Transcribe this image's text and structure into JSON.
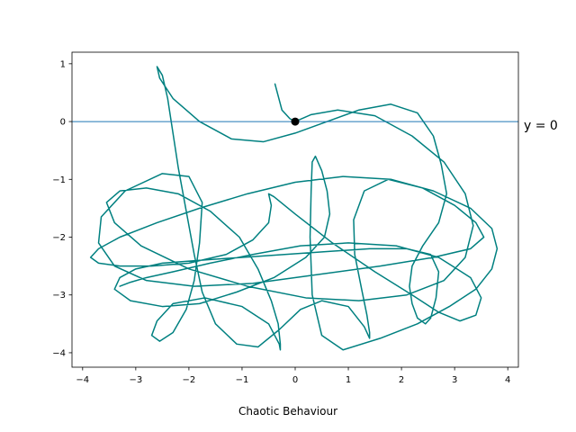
{
  "chart_data": {
    "type": "line",
    "title": "",
    "xlabel": "Chaotic Behaviour",
    "ylabel": "",
    "xlim": [
      -4.2,
      4.2
    ],
    "ylim": [
      -4.25,
      1.2
    ],
    "xticks": [
      -4,
      -3,
      -2,
      -1,
      0,
      1,
      2,
      3,
      4
    ],
    "xtick_labels": [
      "−4",
      "−3",
      "−2",
      "−1",
      "0",
      "1",
      "2",
      "3",
      "4"
    ],
    "yticks": [
      1,
      0,
      -1,
      -2,
      -3,
      -4
    ],
    "ytick_labels": [
      "1",
      "0",
      "−1",
      "−2",
      "−3",
      "−4"
    ],
    "grid": false,
    "series": [
      {
        "color": "#008080",
        "x": [
          -0.38,
          -0.25,
          -0.1,
          0,
          0.3,
          0.8,
          1.5,
          2.2,
          2.8,
          3.2,
          3.35,
          3.2,
          2.8,
          2.1,
          1.2,
          0.2,
          -0.9,
          -2,
          -2.9,
          -3.4,
          -3.55,
          -3.3,
          -2.8,
          -2.2,
          -1.6,
          -1.05,
          -0.7,
          -0.45,
          -0.32,
          -0.28,
          -0.28,
          -0.3,
          -0.5,
          -1,
          -1.7,
          -2.3,
          -2.6,
          -2.7,
          -2.55,
          -2.3,
          -2.05,
          -1.9,
          -1.8,
          -1.75,
          -2,
          -2.5,
          -3.2,
          -3.65,
          -3.7,
          -3.4,
          -2.8,
          -1.9,
          -0.8,
          0.4,
          1.6,
          2.6,
          3.3,
          3.55,
          3.4,
          3,
          2.4,
          1.75,
          1.3,
          1.1,
          1.12,
          1.25,
          1.35,
          1.4,
          1.4,
          1.3,
          1,
          0.5,
          0.1,
          -0.3,
          -0.7,
          -1.1,
          -1.5,
          -1.75,
          -1.9,
          -2.05,
          -2.2,
          -2.3,
          -2.4,
          -2.5,
          -2.6,
          -2.55,
          -2.3,
          -1.8,
          -1.2,
          -0.6,
          0,
          0.6,
          1.2,
          1.8,
          2.3,
          2.6,
          2.75,
          2.85,
          2.7,
          2.4,
          2.2,
          2.15,
          2.2,
          2.3,
          2.45,
          2.55,
          2.65,
          2.7,
          2.55,
          2.1,
          1.4,
          0.6,
          -0.2,
          -1,
          -1.8,
          -2.5,
          -3,
          -3.3,
          -3.4,
          -3.1,
          -2.5,
          -1.8,
          -1.1,
          -0.4,
          0.2,
          0.55,
          0.65,
          0.6,
          0.5,
          0.38,
          0.32,
          0.3,
          0.28,
          0.32,
          0.5,
          0.9,
          1.6,
          2.3,
          2.9,
          3.4,
          3.7,
          3.8,
          3.7,
          3.3,
          2.6,
          1.8,
          0.9,
          0,
          -0.9,
          -1.8,
          -2.6,
          -3.3,
          -3.7,
          -3.85,
          -3.7,
          -3.3,
          -2.7,
          -2,
          -1.3,
          -0.8,
          -0.5,
          -0.45,
          -0.5,
          -0.4,
          0,
          0.7,
          1.5,
          2.2,
          2.7,
          3.1,
          3.4,
          3.5,
          3.3,
          2.7,
          1.9,
          1,
          0.1,
          -0.8,
          -1.6,
          -2.3,
          -2.8,
          -3.1,
          -3.3
        ],
        "y": [
          0.65,
          0.2,
          0.05,
          0,
          0.12,
          0.2,
          0.1,
          -0.25,
          -0.7,
          -1.25,
          -1.8,
          -2.35,
          -2.75,
          -3,
          -3.1,
          -3.05,
          -2.85,
          -2.55,
          -2.15,
          -1.75,
          -1.4,
          -1.2,
          -1.15,
          -1.25,
          -1.55,
          -2,
          -2.55,
          -3.1,
          -3.5,
          -3.85,
          -3.95,
          -3.85,
          -3.5,
          -3.2,
          -3.05,
          -3.15,
          -3.45,
          -3.7,
          -3.8,
          -3.65,
          -3.25,
          -2.75,
          -2.1,
          -1.4,
          -0.95,
          -0.9,
          -1.2,
          -1.65,
          -2.1,
          -2.5,
          -2.75,
          -2.85,
          -2.8,
          -2.65,
          -2.5,
          -2.35,
          -2.2,
          -2,
          -1.75,
          -1.45,
          -1.15,
          -1,
          -1.2,
          -1.7,
          -2.3,
          -2.9,
          -3.35,
          -3.65,
          -3.75,
          -3.55,
          -3.2,
          -3.1,
          -3.25,
          -3.6,
          -3.9,
          -3.85,
          -3.5,
          -2.95,
          -2.3,
          -1.55,
          -0.8,
          -0.2,
          0.4,
          0.8,
          0.95,
          0.75,
          0.4,
          0,
          -0.3,
          -0.35,
          -0.2,
          0,
          0.2,
          0.3,
          0.15,
          -0.25,
          -0.75,
          -1.25,
          -1.75,
          -2.15,
          -2.5,
          -2.85,
          -3.15,
          -3.4,
          -3.5,
          -3.4,
          -3.05,
          -2.6,
          -2.3,
          -2.2,
          -2.2,
          -2.25,
          -2.3,
          -2.35,
          -2.4,
          -2.45,
          -2.55,
          -2.7,
          -2.9,
          -3.1,
          -3.2,
          -3.15,
          -2.95,
          -2.7,
          -2.35,
          -2,
          -1.6,
          -1.2,
          -0.85,
          -0.6,
          -0.7,
          -1.2,
          -2,
          -3,
          -3.7,
          -3.95,
          -3.75,
          -3.5,
          -3.2,
          -2.9,
          -2.55,
          -2.2,
          -1.85,
          -1.5,
          -1.2,
          -1,
          -0.95,
          -1.05,
          -1.25,
          -1.5,
          -1.75,
          -2,
          -2.2,
          -2.35,
          -2.45,
          -2.5,
          -2.5,
          -2.45,
          -2.3,
          -2.05,
          -1.75,
          -1.45,
          -1.25,
          -1.3,
          -1.6,
          -2.1,
          -2.6,
          -3,
          -3.3,
          -3.45,
          -3.35,
          -3.05,
          -2.7,
          -2.35,
          -2.15,
          -2.1,
          -2.15,
          -2.3,
          -2.45,
          -2.6,
          -2.7,
          -2.78,
          -2.85
        ]
      }
    ],
    "reference_line": {
      "y": 0,
      "label": "y = 0",
      "color": "#1f77b4"
    },
    "point": {
      "x": 0,
      "y": 0,
      "color": "#000000"
    }
  }
}
